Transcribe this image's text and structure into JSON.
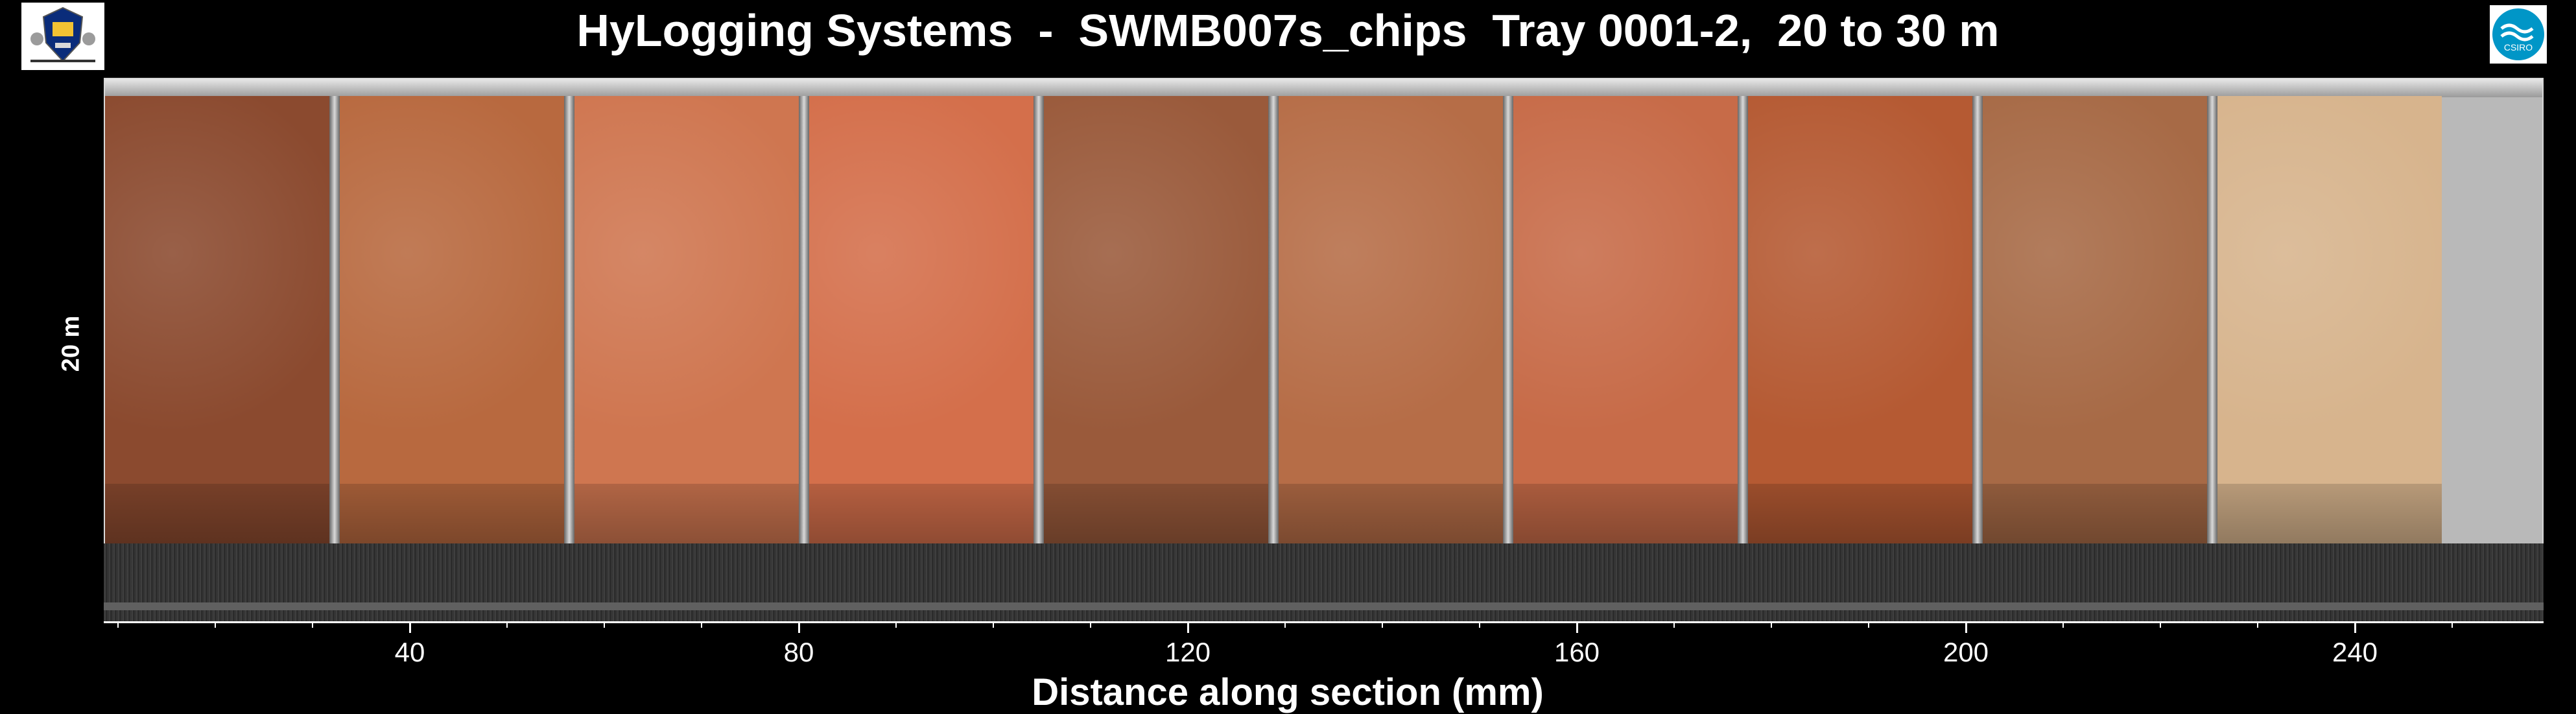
{
  "header": {
    "title": "HyLogging Systems  -  SWMB007s_chips  Tray 0001-2,  20 to 30 m",
    "left_logo": "government-crest-logo",
    "right_logo_text": "CSIRO"
  },
  "side_label": "20 m",
  "tray": {
    "compartment_colors": [
      "#8b4a2f",
      "#b8693f",
      "#cf7650",
      "#d46f4b",
      "#9a5a3b",
      "#b66d47",
      "#c76b48",
      "#b55a33",
      "#a76a46",
      "#d7b48d"
    ]
  },
  "axis": {
    "xlabel": "Distance along section (mm)",
    "tick_labels": [
      "40",
      "80",
      "120",
      "160",
      "200",
      "240"
    ],
    "ticks": [
      {
        "label": "40",
        "value": 40
      },
      {
        "label": "80",
        "value": 80
      },
      {
        "label": "120",
        "value": 120
      },
      {
        "label": "160",
        "value": 160
      },
      {
        "label": "200",
        "value": 200
      },
      {
        "label": "240",
        "value": 240
      }
    ]
  }
}
